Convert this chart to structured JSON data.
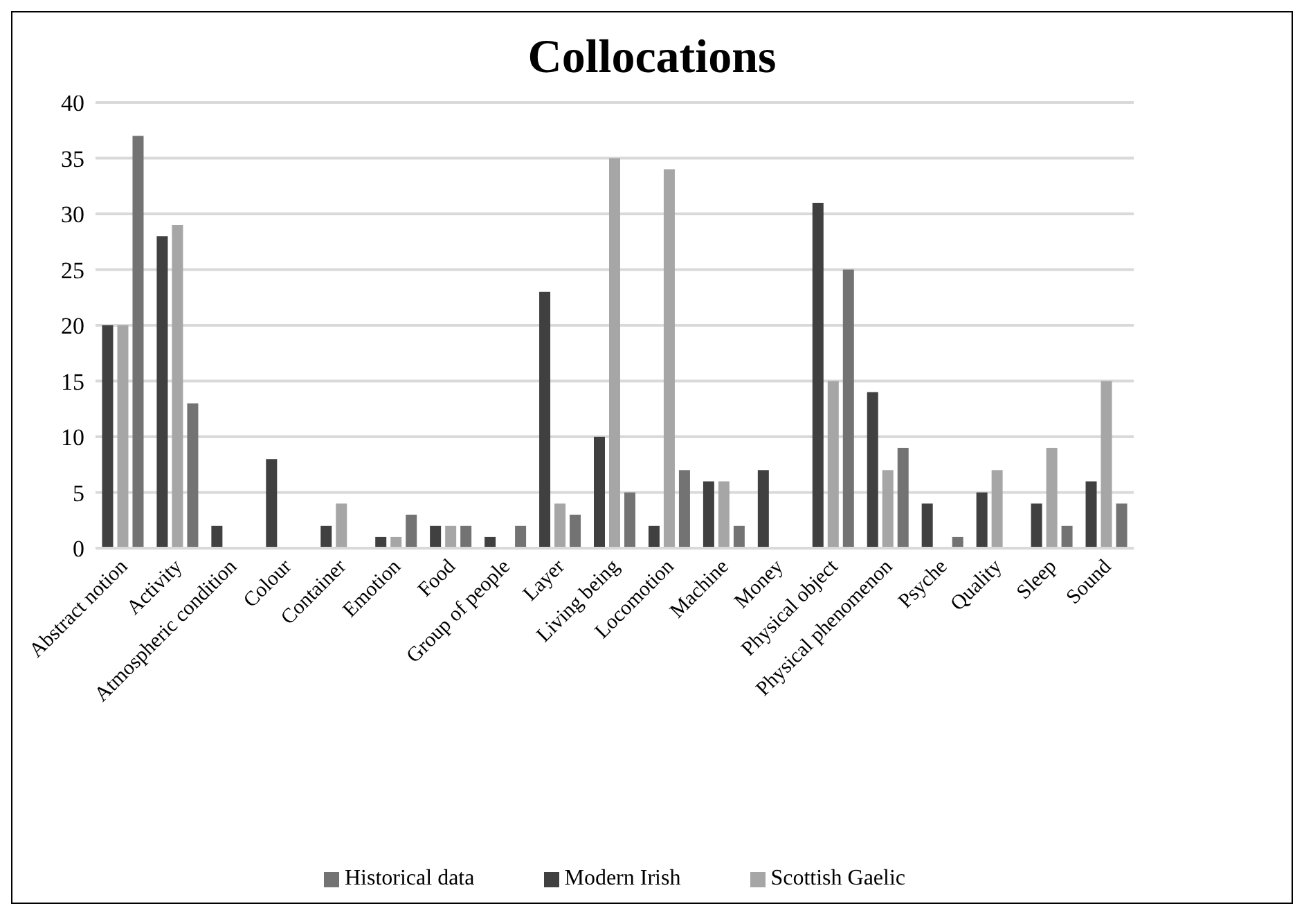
{
  "chart_data": {
    "type": "bar",
    "title": "Collocations",
    "categories": [
      "Abstract notion",
      "Activity",
      "Atmospheric condition",
      "Colour",
      "Container",
      "Emotion",
      "Food",
      "Group of people",
      "Layer",
      "Living being",
      "Locomotion",
      "Machine",
      "Money",
      "Physical object",
      "Physical phenomenon",
      "Psyche",
      "Quality",
      "Sleep",
      "Sound"
    ],
    "series": [
      {
        "name": "Modern Irish",
        "color": "#404040",
        "values": [
          20,
          28,
          2,
          8,
          2,
          1,
          2,
          1,
          23,
          10,
          2,
          6,
          7,
          31,
          14,
          4,
          5,
          4,
          6
        ]
      },
      {
        "name": "Scottish Gaelic",
        "color": "#a6a6a6",
        "values": [
          20,
          29,
          0,
          0,
          4,
          1,
          2,
          0,
          4,
          35,
          34,
          6,
          0,
          15,
          7,
          0,
          7,
          9,
          15
        ]
      },
      {
        "name": "Historical data",
        "color": "#737373",
        "values": [
          37,
          13,
          0,
          0,
          0,
          3,
          2,
          2,
          3,
          5,
          7,
          2,
          0,
          25,
          9,
          1,
          0,
          2,
          4
        ]
      }
    ],
    "ylim": [
      0,
      40
    ],
    "yticks": [
      0,
      5,
      10,
      15,
      20,
      25,
      30,
      35,
      40
    ],
    "grid": "y",
    "legend": "bottom"
  }
}
